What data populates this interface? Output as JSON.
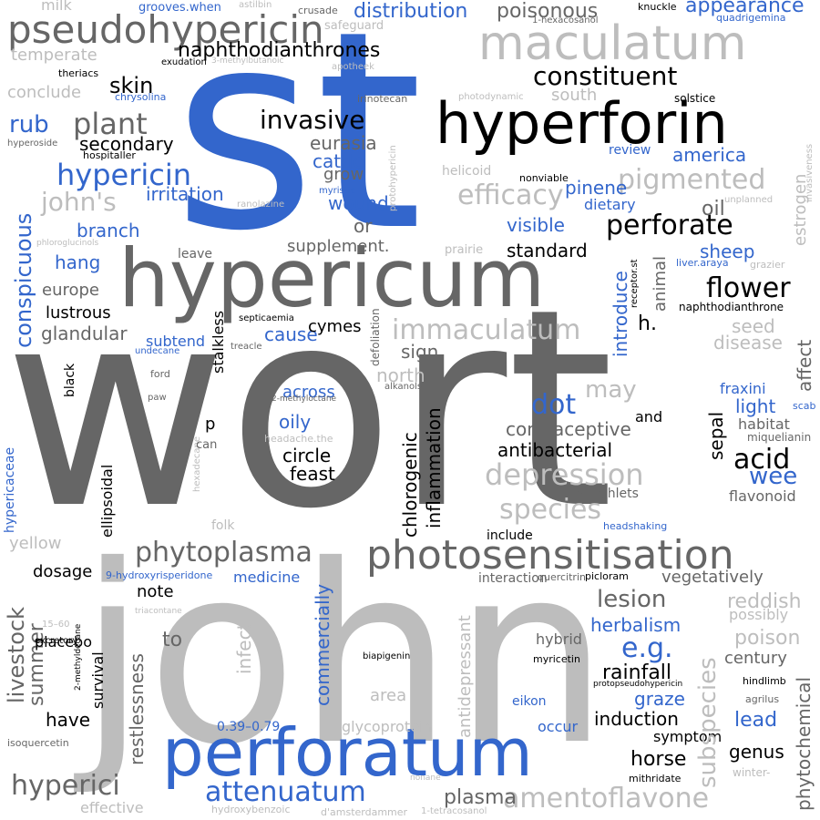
{
  "cloud": {
    "words": [
      "wort",
      "john",
      "st",
      "hyperforin",
      "hypericum",
      "perforatum",
      "maculatum",
      "photosensitisation",
      "pseudohypericin",
      "phytoplasma",
      "immaculatum",
      "hypericin",
      "constituent",
      "perforate",
      "flower",
      "plant",
      "pigmented",
      "depression",
      "species",
      "amentoflavone",
      "attenuatum",
      "hyperici",
      "invasive",
      "acid",
      "naphthodianthrones",
      "distribution",
      "poisonous",
      "appearance",
      "skin",
      "rub",
      "eurasia",
      "secondary",
      "cattle",
      "grow",
      "efficacy",
      "irritation",
      "john's",
      "branch",
      "wound",
      "or",
      "oil",
      "pinene",
      "america",
      "review",
      "dietary",
      "visible",
      "standard",
      "supplement.",
      "sheep",
      "introduce",
      "animal",
      "hang",
      "europe",
      "lustrous",
      "glandular",
      "cause",
      "subtend",
      "cymes",
      "h.",
      "naphthodianthrone",
      "seed",
      "disease",
      "affect",
      "dot",
      "may",
      "sign",
      "north",
      "inflammation",
      "chlorogenic",
      "contraceptive",
      "antibacterial",
      "circle",
      "feast",
      "oily",
      "across",
      "wee",
      "sepal",
      "light",
      "fraxini",
      "habitat",
      "and",
      "miquelianin",
      "flavonoid",
      "branchlets",
      "include",
      "dosage",
      "note",
      "medicine",
      "commercially",
      "livestock",
      "summer",
      "restlessness",
      "survival",
      "placebo",
      "to",
      "infect",
      "have",
      "lesion",
      "reddish",
      "possibly",
      "poison",
      "century",
      "herbalism",
      "e.g.",
      "rainfall",
      "graze",
      "induction",
      "lead",
      "symptom",
      "horse",
      "genus",
      "plasma",
      "subspecies",
      "phytochemical",
      "antidepressant",
      "vegetatively",
      "interaction",
      "hybrid",
      "area",
      "glycoprotein",
      "occur",
      "eikon",
      "myricetin",
      "quercitrin",
      "picloram",
      "protopseudohypericin",
      "hindlimb",
      "agrilus",
      "winter-",
      "mithridate",
      "biapigenin",
      "conspicuous",
      "hypericaceae",
      "ellipsoidal",
      "black",
      "stalkless",
      "yellow",
      "folk",
      "effective",
      "hydroxybenzoic",
      "d'amsterdammer",
      "1-tetracosanol",
      "nonane",
      "isoquercetin",
      "excretory",
      "15–60",
      "2-methyldecane",
      "triacontane",
      "9-hydroxyrisperidone",
      "0.39–0.79",
      "hexadecane",
      "headshaking",
      "estrogen",
      "grazier",
      "liver.araya",
      "receptor.st",
      "invasiveness",
      "unplanned",
      "solstice",
      "nonviable",
      "helicoid",
      "protohypericin",
      "ranolazine",
      "myristic",
      "photodynamic",
      "irinotecan",
      "quadrigemina",
      "knuckle",
      "1-hexacosanol",
      "crusade",
      "safeguard",
      "apotheek",
      "3-methylbutanoic",
      "exudation",
      "theriacs",
      "chrysolina",
      "hospitaller",
      "hyperoside",
      "conclude",
      "temperate",
      "milk",
      "grooves.when",
      "astilbin",
      "phloroglucinols",
      "leave",
      "prairie",
      "south",
      "septicaemia",
      "treacle",
      "undecane",
      "ford",
      "paw",
      "p",
      "can",
      "alkanols",
      "2-methyloctane",
      "headache.the",
      "defoliation",
      "scab"
    ]
  },
  "colors": {
    "blue": "#3366cc",
    "black": "#000000",
    "dark_gray": "#666666",
    "light_gray": "#bdbdbd",
    "background": "#ffffff"
  }
}
